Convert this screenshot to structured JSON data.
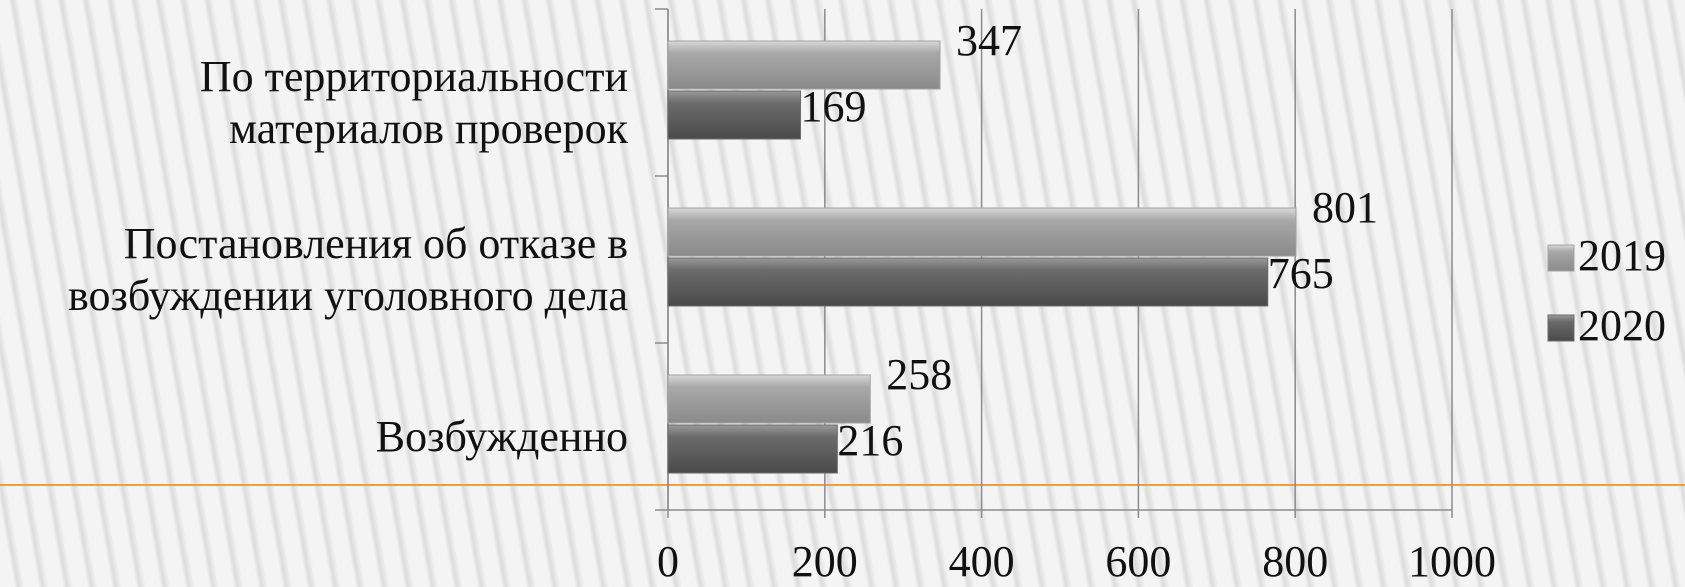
{
  "chart_data": {
    "type": "bar",
    "orientation": "horizontal",
    "categories": [
      "По территориальности материалов проверок",
      "Постановления об отказе в возбуждении уголовного дела",
      "Возбужденно"
    ],
    "series": [
      {
        "name": "2019",
        "color": "#a3a3a3",
        "values": [
          347,
          801,
          258
        ]
      },
      {
        "name": "2020",
        "color": "#6b6b6b",
        "values": [
          169,
          765,
          216
        ]
      }
    ],
    "xlim": [
      0,
      1000
    ],
    "xticks": [
      0,
      200,
      400,
      600,
      800,
      1000
    ],
    "grid": true,
    "legend": "right"
  }
}
